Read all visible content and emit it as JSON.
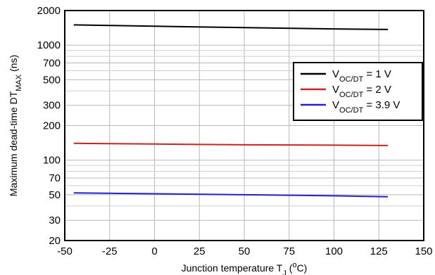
{
  "chart_data": {
    "type": "line",
    "xlabel": {
      "main": "Junction temperature T",
      "sub": "J",
      "paren_open": " (",
      "sup": "o",
      "unit": "C)"
    },
    "ylabel": {
      "main": "Maximum dead-time DT",
      "sub": "MAX",
      "unit": " (ns)"
    },
    "xlim": [
      -50,
      150
    ],
    "ylim": [
      20,
      2000
    ],
    "y_scale": "log",
    "grid": true,
    "x_ticks": [
      -50,
      -25,
      0,
      25,
      50,
      75,
      100,
      125,
      150
    ],
    "x_tick_labels": [
      "-50",
      "-25",
      "0",
      "25",
      "50",
      "75",
      "100",
      "125",
      "150"
    ],
    "y_ticks": [
      20,
      30,
      50,
      70,
      100,
      200,
      300,
      500,
      700,
      1000,
      2000
    ],
    "y_tick_labels": [
      "20",
      "30",
      "50",
      "70",
      "100",
      "200",
      "300",
      "500",
      "700",
      "1000",
      "2000"
    ],
    "y_minor_ticks": [
      40,
      60,
      80,
      90,
      400,
      600,
      800,
      900
    ],
    "legend_position": "right",
    "series": [
      {
        "name_main": "V",
        "name_sub": "OC/DT",
        "name_value": " = 1 V",
        "color": "#000000",
        "x": [
          -45,
          0,
          50,
          100,
          130
        ],
        "y": [
          1500,
          1460,
          1420,
          1385,
          1370
        ]
      },
      {
        "name_main": "V",
        "name_sub": "OC/DT",
        "name_value": " = 2 V",
        "color": "#cc2222",
        "x": [
          -45,
          0,
          50,
          100,
          130
        ],
        "y": [
          140,
          138,
          136,
          135,
          134
        ]
      },
      {
        "name_main": "V",
        "name_sub": "OC/DT",
        "name_value": " = 3.9 V",
        "color": "#2222cc",
        "x": [
          -45,
          0,
          50,
          100,
          130
        ],
        "y": [
          52,
          51,
          50,
          49,
          48
        ]
      }
    ]
  }
}
